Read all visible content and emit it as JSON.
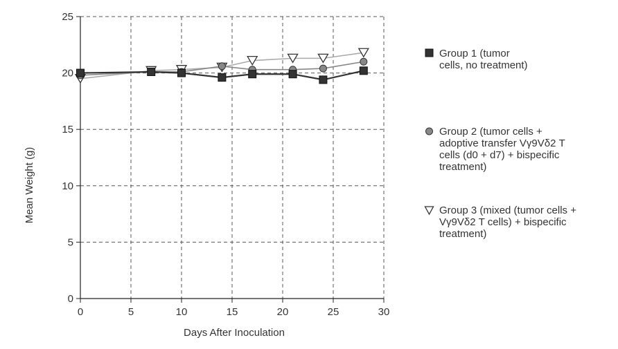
{
  "chart_data": {
    "type": "line",
    "title": "",
    "xlabel": "Days After Inoculation",
    "ylabel": "Mean Weight (g)",
    "xlim": [
      0,
      30
    ],
    "ylim": [
      0,
      25
    ],
    "xticks": [
      "0",
      "5",
      "10",
      "15",
      "20",
      "25",
      "30"
    ],
    "yticks": [
      "0",
      "5",
      "10",
      "15",
      "20",
      "25"
    ],
    "grid": true,
    "legend_position": "right",
    "series": [
      {
        "name": "Group 1 (tumor\ncells, no treatment)",
        "marker": "square",
        "color": "#333333",
        "x": [
          0,
          7,
          10,
          14,
          17,
          21,
          24,
          28
        ],
        "y": [
          20.0,
          20.1,
          20.0,
          19.6,
          19.9,
          19.9,
          19.4,
          20.2
        ]
      },
      {
        "name": "Group 2 (tumor cells +\nadoptive transfer Vγ9Vδ2 T\ncells (d0 + d7) + bispecific\ntreatment)",
        "marker": "circle",
        "color": "#888888",
        "x": [
          0,
          7,
          10,
          14,
          17,
          21,
          24,
          28
        ],
        "y": [
          19.8,
          20.1,
          20.1,
          20.6,
          20.3,
          20.3,
          20.4,
          21.0
        ]
      },
      {
        "name": "Group 3 (mixed (tumor cells +\nVγ9Vδ2 T cells) + bispecific\ntreatment)",
        "marker": "triangle-down",
        "color": "#aaaaaa",
        "x": [
          0,
          7,
          10,
          14,
          17,
          21,
          24,
          28
        ],
        "y": [
          19.5,
          20.2,
          20.3,
          20.5,
          21.1,
          21.3,
          21.3,
          21.8
        ]
      }
    ]
  }
}
